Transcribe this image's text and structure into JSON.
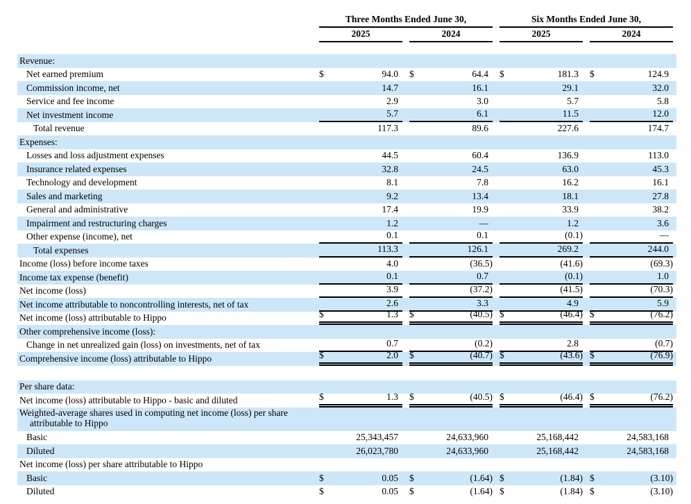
{
  "document": {
    "currency_symbol": "$",
    "shade_color": "#cde7f8",
    "header": {
      "groups": [
        {
          "title": "Three Months Ended June 30,",
          "years": [
            "2025",
            "2024"
          ]
        },
        {
          "title": "Six Months Ended June 30,",
          "years": [
            "2025",
            "2024"
          ]
        }
      ]
    },
    "rows": [
      {
        "label": "Revenue:",
        "indent": 0,
        "shade": true,
        "values": null
      },
      {
        "label": "Net earned premium",
        "indent": 1,
        "shade": false,
        "dollar": true,
        "values": [
          "94.0",
          "64.4",
          "181.3",
          "124.9"
        ]
      },
      {
        "label": "Commission income, net",
        "indent": 1,
        "shade": true,
        "values": [
          "14.7",
          "16.1",
          "29.1",
          "32.0"
        ]
      },
      {
        "label": "Service and fee income",
        "indent": 1,
        "shade": false,
        "values": [
          "2.9",
          "3.0",
          "5.7",
          "5.8"
        ]
      },
      {
        "label": "Net investment income",
        "indent": 1,
        "shade": true,
        "values": [
          "5.7",
          "6.1",
          "11.5",
          "12.0"
        ],
        "rule": "single"
      },
      {
        "label": "Total revenue",
        "indent": 2,
        "shade": false,
        "values": [
          "117.3",
          "89.6",
          "227.6",
          "174.7"
        ]
      },
      {
        "label": "Expenses:",
        "indent": 0,
        "shade": true,
        "values": null
      },
      {
        "label": "Losses and loss adjustment expenses",
        "indent": 1,
        "shade": false,
        "values": [
          "44.5",
          "60.4",
          "136.9",
          "113.0"
        ]
      },
      {
        "label": "Insurance related expenses",
        "indent": 1,
        "shade": true,
        "values": [
          "32.8",
          "24.5",
          "63.0",
          "45.3"
        ]
      },
      {
        "label": "Technology and development",
        "indent": 1,
        "shade": false,
        "values": [
          "8.1",
          "7.8",
          "16.2",
          "16.1"
        ]
      },
      {
        "label": "Sales and marketing",
        "indent": 1,
        "shade": true,
        "values": [
          "9.2",
          "13.4",
          "18.1",
          "27.8"
        ]
      },
      {
        "label": "General and administrative",
        "indent": 1,
        "shade": false,
        "values": [
          "17.4",
          "19.9",
          "33.9",
          "38.2"
        ]
      },
      {
        "label": "Impairment and restructuring charges",
        "indent": 1,
        "shade": true,
        "values": [
          "1.2",
          "—",
          "1.2",
          "3.6"
        ]
      },
      {
        "label": "Other expense (income), net",
        "indent": 1,
        "shade": false,
        "values": [
          "0.1",
          "0.1",
          "(0.1)",
          "—"
        ],
        "rule": "single"
      },
      {
        "label": "Total expenses",
        "indent": 2,
        "shade": true,
        "values": [
          "113.3",
          "126.1",
          "269.2",
          "244.0"
        ],
        "rule": "single"
      },
      {
        "label": "Income (loss) before income taxes",
        "indent": 0,
        "shade": false,
        "values": [
          "4.0",
          "(36.5)",
          "(41.6)",
          "(69.3)"
        ]
      },
      {
        "label": "Income tax expense (benefit)",
        "indent": 0,
        "shade": true,
        "values": [
          "0.1",
          "0.7",
          "(0.1)",
          "1.0"
        ],
        "rule": "single"
      },
      {
        "label": "Net income (loss)",
        "indent": 0,
        "shade": false,
        "values": [
          "3.9",
          "(37.2)",
          "(41.5)",
          "(70.3)"
        ],
        "rule": "single"
      },
      {
        "label": "Net income attributable to noncontrolling interests, net of tax",
        "indent": 0,
        "shade": true,
        "values": [
          "2.6",
          "3.3",
          "4.9",
          "5.9"
        ],
        "rule": "single"
      },
      {
        "label": "Net income (loss) attributable to Hippo",
        "indent": 0,
        "shade": false,
        "dollar": true,
        "values": [
          "1.3",
          "(40.5)",
          "(46.4)",
          "(76.2)"
        ],
        "rule": "double"
      },
      {
        "label": "Other comprehensive income (loss):",
        "indent": 0,
        "shade": true,
        "values": null
      },
      {
        "label": "Change in net unrealized gain (loss) on investments, net of tax",
        "indent": 1,
        "shade": false,
        "values": [
          "0.7",
          "(0.2)",
          "2.8",
          "(0.7)"
        ],
        "rule": "single"
      },
      {
        "label": "Comprehensive income (loss) attributable to Hippo",
        "indent": 0,
        "shade": true,
        "dollar": true,
        "values": [
          "2.0",
          "(40.7)",
          "(43.6)",
          "(76.9)"
        ],
        "rule": "double"
      },
      {
        "spacer": true,
        "shade": false
      },
      {
        "label": "Per share data:",
        "indent": 0,
        "shade": true,
        "values": null
      },
      {
        "label": "Net income (loss) attributable to Hippo - basic and diluted",
        "indent": 0,
        "shade": false,
        "dollar": true,
        "values": [
          "1.3",
          "(40.5)",
          "(46.4)",
          "(76.2)"
        ],
        "rule": "double"
      },
      {
        "label": "Weighted-average shares used in computing net income (loss) per share",
        "label2": "attributable to Hippo",
        "indent": 0,
        "shade": true,
        "values": null
      },
      {
        "label": "Basic",
        "indent": 1,
        "shade": false,
        "values": [
          "25,343,457",
          "24,633,960",
          "25,168,442",
          "24,583,168"
        ]
      },
      {
        "label": "Diluted",
        "indent": 1,
        "shade": true,
        "values": [
          "26,023,780",
          "24,633,960",
          "25,168,442",
          "24,583,168"
        ]
      },
      {
        "label": "Net income (loss) per share attributable to Hippo",
        "indent": 0,
        "shade": false,
        "values": null
      },
      {
        "label": "Basic",
        "indent": 1,
        "shade": true,
        "dollar": true,
        "values": [
          "0.05",
          "(1.64)",
          "(1.84)",
          "(3.10)"
        ]
      },
      {
        "label": "Diluted",
        "indent": 1,
        "shade": false,
        "dollar": true,
        "values": [
          "0.05",
          "(1.64)",
          "(1.84)",
          "(3.10)"
        ]
      }
    ]
  }
}
